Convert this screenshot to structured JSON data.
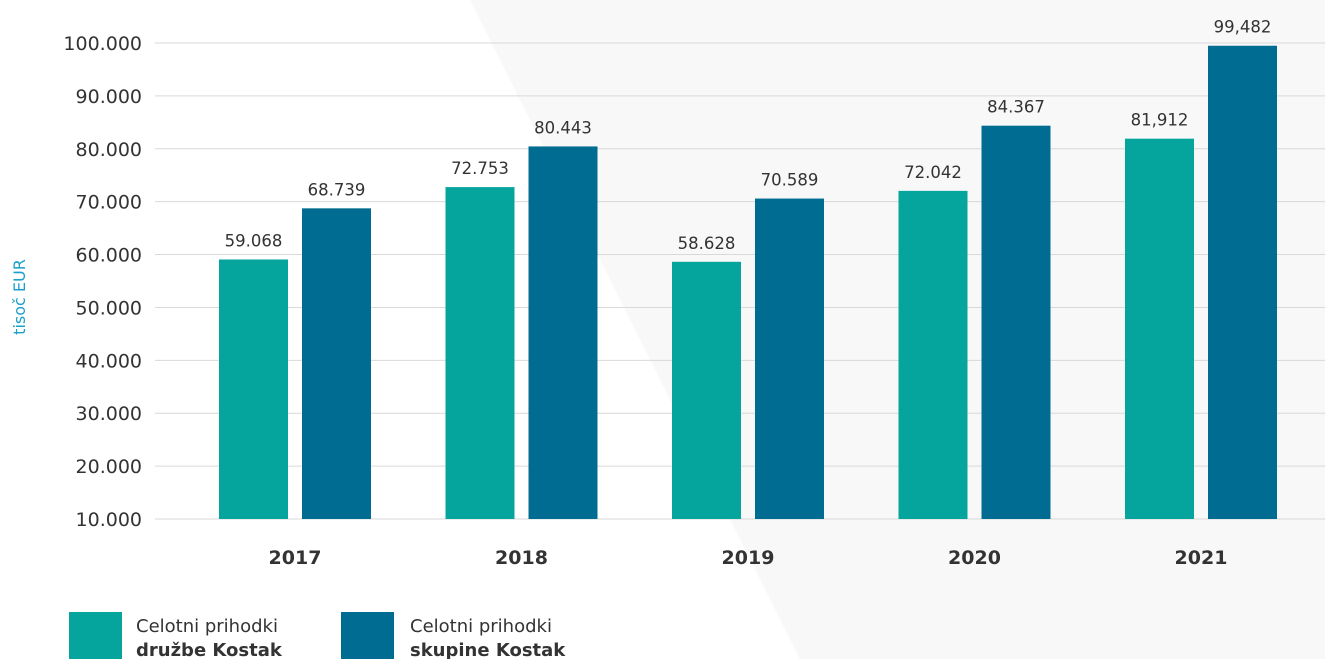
{
  "chart_data": {
    "type": "bar",
    "categories": [
      "2017",
      "2018",
      "2019",
      "2020",
      "2021"
    ],
    "series": [
      {
        "name_line1": "Celotni prihodki",
        "name_line2": "družbe Kostak",
        "color": "#05a49d",
        "values": [
          59068,
          72753,
          58628,
          72042,
          81912
        ],
        "labels": [
          "59.068",
          "72.753",
          "58.628",
          "72.042",
          "81,912"
        ]
      },
      {
        "name_line1": "Celotni prihodki",
        "name_line2": "skupine Kostak",
        "color": "#006c91",
        "values": [
          68739,
          80443,
          70589,
          84367,
          99482
        ],
        "labels": [
          "68.739",
          "80.443",
          "70.589",
          "84.367",
          "99,482"
        ]
      }
    ],
    "ylabel": "tisoč EUR",
    "ylim": [
      10000,
      100000
    ],
    "yticks": [
      10000,
      20000,
      30000,
      40000,
      50000,
      60000,
      70000,
      80000,
      90000,
      100000
    ],
    "ytick_labels": [
      "10.000",
      "20.000",
      "30.000",
      "40.000",
      "50.000",
      "60.000",
      "70.000",
      "80.000",
      "90.000",
      "100.000"
    ],
    "grid": true,
    "legend_position": "bottom-left",
    "gridline_color": "#d9d9d9",
    "background_shape_color": "#f8f8f8"
  }
}
